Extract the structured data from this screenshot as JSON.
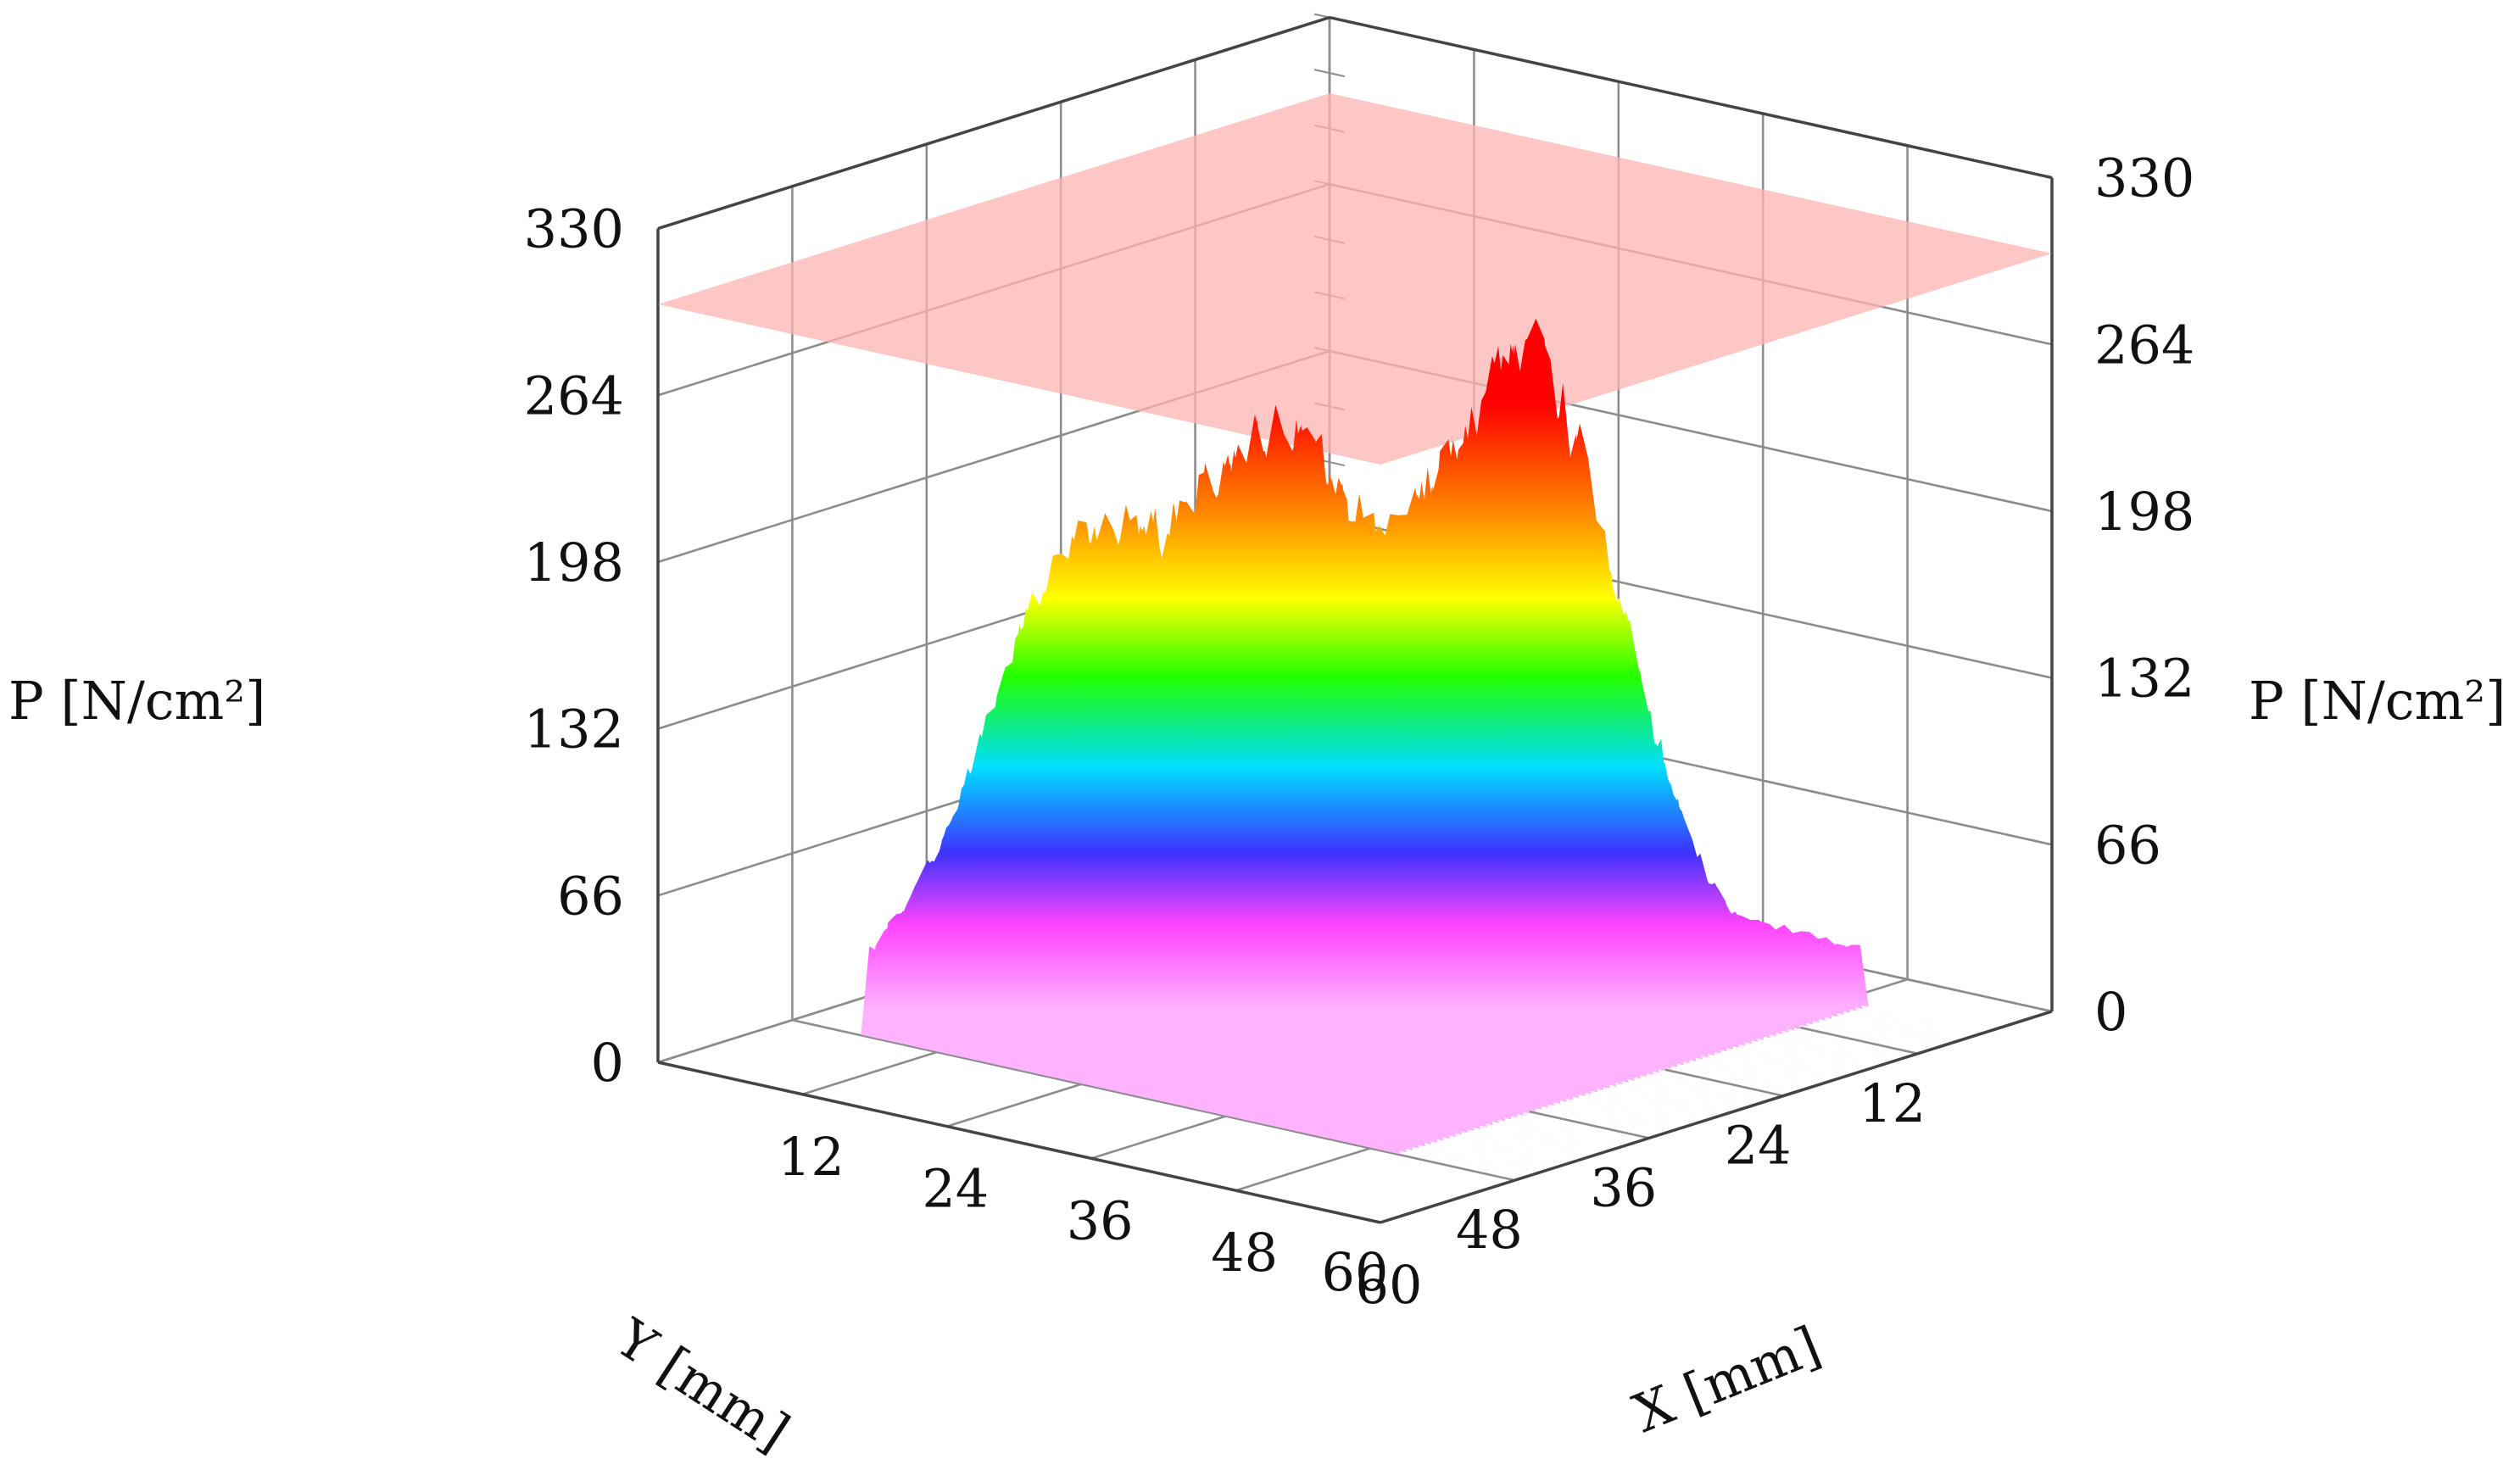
{
  "chart_data": {
    "type": "surface3d",
    "zlabel_left": "P [N/cm²]",
    "zlabel_right": "P [N/cm²]",
    "xlabel": "X [mm]",
    "ylabel": "Y [mm]",
    "z_ticks": [
      "0",
      "66",
      "132",
      "198",
      "264",
      "330"
    ],
    "x_ticks": [
      "12",
      "24",
      "36",
      "48",
      "60"
    ],
    "y_ticks": [
      "12",
      "24",
      "36",
      "48",
      "60"
    ],
    "zlim": [
      0,
      330
    ],
    "xlim": [
      0,
      60
    ],
    "ylim": [
      0,
      60
    ],
    "threshold_plane_z": 300,
    "grid": true,
    "colormap": [
      "#ff99ff",
      "#ff33ff",
      "#3333ff",
      "#00e5ff",
      "#22ff00",
      "#ffff00",
      "#ff8800",
      "#ff0000"
    ],
    "plane_color": "#ffb3b3",
    "peaks": [
      {
        "x": 37,
        "y": 22,
        "z": 232
      },
      {
        "x": 17,
        "y": 41,
        "z": 155
      },
      {
        "x": 26,
        "y": 32,
        "z": 190
      }
    ]
  }
}
